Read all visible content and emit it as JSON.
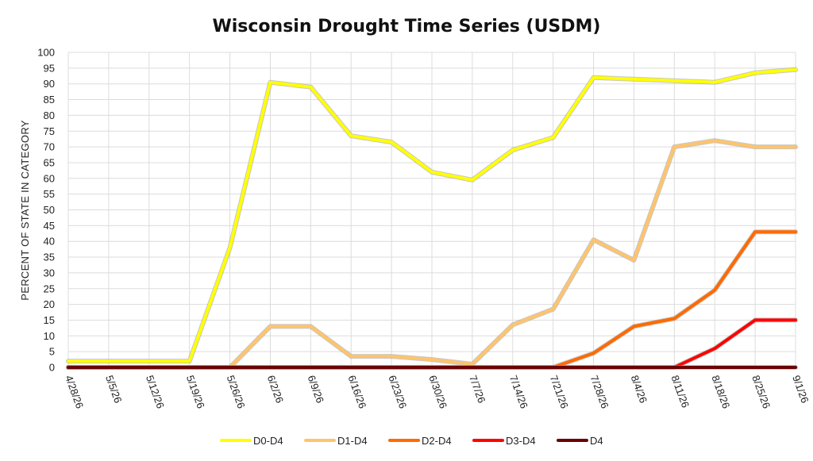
{
  "chart_data": {
    "type": "line",
    "title": "Wisconsin Drought Time Series (USDM)",
    "ylabel": "PERCENT OF STATE IN CATEGORY",
    "xlabel": "",
    "ylim": [
      0,
      100
    ],
    "ytick_step": 5,
    "grid": true,
    "legend_position": "bottom",
    "categories": [
      "4/28/26",
      "5/5/26",
      "5/12/26",
      "5/19/26",
      "5/26/26",
      "6/2/26",
      "6/9/26",
      "6/16/26",
      "6/23/26",
      "6/30/26",
      "7/7/26",
      "7/14/26",
      "7/21/26",
      "7/28/26",
      "8/4/26",
      "8/11/26",
      "8/18/26",
      "8/25/26",
      "9/1/26"
    ],
    "series": [
      {
        "name": "D0-D4",
        "color": "#ffff00",
        "values": [
          2,
          2,
          2,
          2,
          38,
          90.5,
          89,
          73.5,
          71.5,
          62,
          59.5,
          69,
          73,
          92,
          91.5,
          91,
          90.5,
          93.5,
          94.5
        ]
      },
      {
        "name": "D1-D4",
        "color": "#ffc46b",
        "values": [
          0,
          0,
          0,
          0,
          0,
          13,
          13,
          3.5,
          3.5,
          2.5,
          1,
          13.5,
          18.5,
          40.5,
          34,
          70,
          72,
          70,
          70
        ]
      },
      {
        "name": "D2-D4",
        "color": "#ff6a00",
        "values": [
          0,
          0,
          0,
          0,
          0,
          0,
          0,
          0,
          0,
          0,
          0,
          0,
          0,
          4.5,
          13,
          15.5,
          24.5,
          43,
          43
        ]
      },
      {
        "name": "D3-D4",
        "color": "#ff0000",
        "values": [
          0,
          0,
          0,
          0,
          0,
          0,
          0,
          0,
          0,
          0,
          0,
          0,
          0,
          0,
          0,
          0,
          6,
          15,
          15
        ]
      },
      {
        "name": "D4",
        "color": "#6b0000",
        "values": [
          0,
          0,
          0,
          0,
          0,
          0,
          0,
          0,
          0,
          0,
          0,
          0,
          0,
          0,
          0,
          0,
          0,
          0,
          0
        ]
      }
    ]
  }
}
